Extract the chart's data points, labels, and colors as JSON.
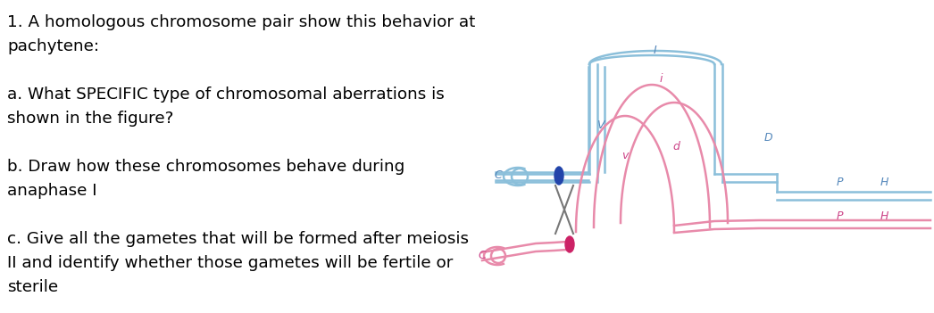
{
  "bg_color": "#ffffff",
  "blue_color": "#8bbfda",
  "pink_color": "#e88aaa",
  "dark_blue": "#2244aa",
  "dark_pink": "#cc2266",
  "cross_color": "#777777",
  "label_blue": "#5588bb",
  "label_pink": "#cc4488",
  "label_black": "#333333",
  "lw": 1.8,
  "text_lines": [
    "1. A homologous chromosome pair show this behavior at",
    "pachytene:",
    "",
    "a. What SPECIFIC type of chromosomal aberrations is",
    "shown in the figure?",
    "",
    "b. Draw how these chromosomes behave during",
    "anaphase I",
    "",
    "c. Give all the gametes that will be formed after meiosis",
    "II and identify whether those gametes will be fertile or",
    "sterile"
  ]
}
